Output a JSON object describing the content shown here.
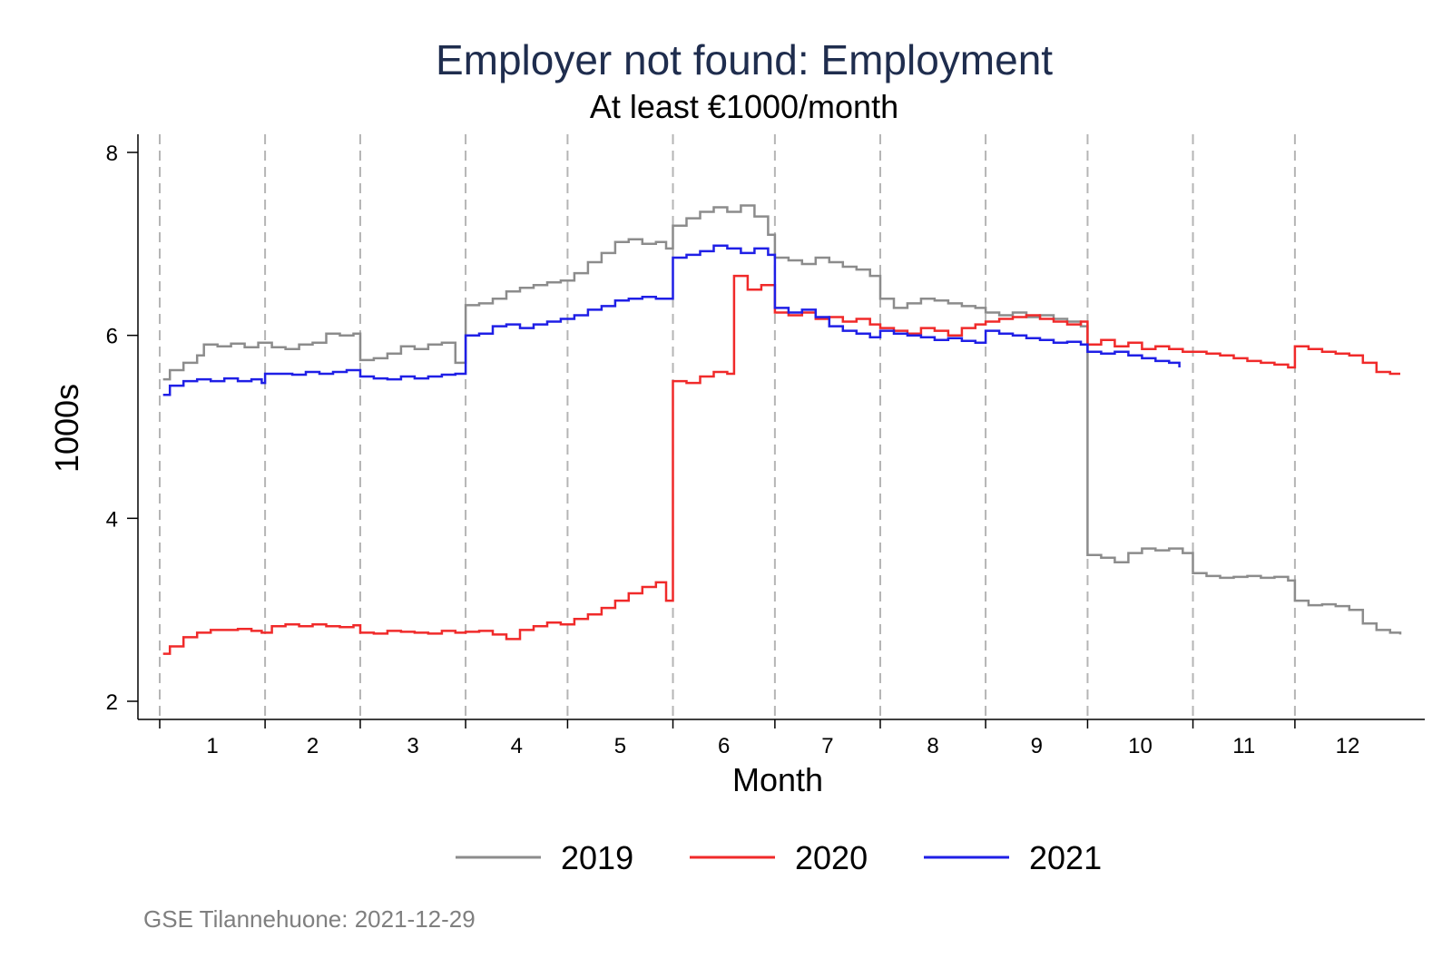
{
  "chart_data": {
    "type": "line",
    "title": "Employer not found: Employment",
    "subtitle": "At least €1000/month",
    "xlabel": "Month",
    "ylabel": "1000s",
    "xlim": [
      1,
      366
    ],
    "ylim": [
      2,
      8
    ],
    "yticks": [
      2,
      4,
      6,
      8
    ],
    "month_labels": [
      "1",
      "2",
      "3",
      "4",
      "5",
      "6",
      "7",
      "8",
      "9",
      "10",
      "11",
      "12"
    ],
    "month_starts": [
      1,
      32,
      60,
      91,
      121,
      152,
      182,
      213,
      244,
      274,
      305,
      335
    ],
    "x_unit": "day of year",
    "legend": {
      "position": "bottom",
      "entries": [
        "2019",
        "2020",
        "2021"
      ]
    },
    "grid": false,
    "series": [
      {
        "name": "2019",
        "color": "#8c8c8c",
        "points": [
          [
            2,
            5.52
          ],
          [
            4,
            5.62
          ],
          [
            8,
            5.7
          ],
          [
            12,
            5.78
          ],
          [
            14,
            5.9
          ],
          [
            18,
            5.88
          ],
          [
            22,
            5.91
          ],
          [
            26,
            5.87
          ],
          [
            30,
            5.92
          ],
          [
            34,
            5.87
          ],
          [
            38,
            5.85
          ],
          [
            42,
            5.9
          ],
          [
            46,
            5.92
          ],
          [
            50,
            6.02
          ],
          [
            54,
            6.0
          ],
          [
            58,
            6.02
          ],
          [
            60,
            5.73
          ],
          [
            64,
            5.75
          ],
          [
            68,
            5.8
          ],
          [
            72,
            5.88
          ],
          [
            76,
            5.85
          ],
          [
            80,
            5.9
          ],
          [
            84,
            5.92
          ],
          [
            88,
            5.7
          ],
          [
            91,
            6.33
          ],
          [
            95,
            6.35
          ],
          [
            99,
            6.4
          ],
          [
            103,
            6.48
          ],
          [
            107,
            6.52
          ],
          [
            111,
            6.55
          ],
          [
            115,
            6.58
          ],
          [
            119,
            6.6
          ],
          [
            123,
            6.68
          ],
          [
            127,
            6.8
          ],
          [
            131,
            6.9
          ],
          [
            135,
            7.02
          ],
          [
            139,
            7.05
          ],
          [
            143,
            7.0
          ],
          [
            147,
            7.02
          ],
          [
            150,
            6.95
          ],
          [
            152,
            7.2
          ],
          [
            156,
            7.28
          ],
          [
            160,
            7.35
          ],
          [
            164,
            7.4
          ],
          [
            168,
            7.35
          ],
          [
            172,
            7.42
          ],
          [
            176,
            7.3
          ],
          [
            180,
            7.1
          ],
          [
            182,
            6.85
          ],
          [
            186,
            6.82
          ],
          [
            190,
            6.78
          ],
          [
            194,
            6.85
          ],
          [
            198,
            6.8
          ],
          [
            202,
            6.75
          ],
          [
            206,
            6.72
          ],
          [
            210,
            6.65
          ],
          [
            213,
            6.4
          ],
          [
            217,
            6.3
          ],
          [
            221,
            6.35
          ],
          [
            225,
            6.4
          ],
          [
            229,
            6.38
          ],
          [
            233,
            6.35
          ],
          [
            237,
            6.32
          ],
          [
            241,
            6.3
          ],
          [
            244,
            6.25
          ],
          [
            248,
            6.22
          ],
          [
            252,
            6.25
          ],
          [
            256,
            6.2
          ],
          [
            260,
            6.22
          ],
          [
            264,
            6.18
          ],
          [
            268,
            6.15
          ],
          [
            272,
            6.1
          ],
          [
            274,
            3.6
          ],
          [
            278,
            3.57
          ],
          [
            282,
            3.52
          ],
          [
            286,
            3.62
          ],
          [
            290,
            3.67
          ],
          [
            294,
            3.65
          ],
          [
            298,
            3.67
          ],
          [
            302,
            3.62
          ],
          [
            305,
            3.4
          ],
          [
            309,
            3.37
          ],
          [
            313,
            3.35
          ],
          [
            317,
            3.36
          ],
          [
            321,
            3.37
          ],
          [
            325,
            3.35
          ],
          [
            329,
            3.36
          ],
          [
            333,
            3.32
          ],
          [
            335,
            3.1
          ],
          [
            339,
            3.05
          ],
          [
            343,
            3.06
          ],
          [
            347,
            3.04
          ],
          [
            351,
            3.0
          ],
          [
            355,
            2.85
          ],
          [
            359,
            2.78
          ],
          [
            363,
            2.75
          ],
          [
            366,
            2.73
          ]
        ]
      },
      {
        "name": "2020",
        "color": "#f02a2a",
        "points": [
          [
            2,
            2.52
          ],
          [
            4,
            2.6
          ],
          [
            8,
            2.7
          ],
          [
            12,
            2.75
          ],
          [
            16,
            2.78
          ],
          [
            20,
            2.78
          ],
          [
            24,
            2.79
          ],
          [
            28,
            2.77
          ],
          [
            31,
            2.75
          ],
          [
            34,
            2.82
          ],
          [
            38,
            2.84
          ],
          [
            42,
            2.82
          ],
          [
            46,
            2.84
          ],
          [
            50,
            2.82
          ],
          [
            54,
            2.81
          ],
          [
            58,
            2.83
          ],
          [
            60,
            2.75
          ],
          [
            64,
            2.74
          ],
          [
            68,
            2.77
          ],
          [
            72,
            2.76
          ],
          [
            76,
            2.75
          ],
          [
            80,
            2.74
          ],
          [
            84,
            2.77
          ],
          [
            88,
            2.75
          ],
          [
            91,
            2.76
          ],
          [
            95,
            2.77
          ],
          [
            99,
            2.73
          ],
          [
            103,
            2.68
          ],
          [
            107,
            2.78
          ],
          [
            111,
            2.82
          ],
          [
            115,
            2.86
          ],
          [
            119,
            2.84
          ],
          [
            123,
            2.9
          ],
          [
            127,
            2.95
          ],
          [
            131,
            3.02
          ],
          [
            135,
            3.1
          ],
          [
            139,
            3.18
          ],
          [
            143,
            3.25
          ],
          [
            147,
            3.3
          ],
          [
            150,
            3.1
          ],
          [
            152,
            5.5
          ],
          [
            156,
            5.48
          ],
          [
            160,
            5.55
          ],
          [
            164,
            5.6
          ],
          [
            168,
            5.58
          ],
          [
            170,
            6.65
          ],
          [
            174,
            6.5
          ],
          [
            178,
            6.55
          ],
          [
            182,
            6.25
          ],
          [
            186,
            6.22
          ],
          [
            190,
            6.25
          ],
          [
            194,
            6.18
          ],
          [
            198,
            6.2
          ],
          [
            202,
            6.15
          ],
          [
            206,
            6.18
          ],
          [
            210,
            6.12
          ],
          [
            213,
            6.08
          ],
          [
            217,
            6.05
          ],
          [
            221,
            6.02
          ],
          [
            225,
            6.08
          ],
          [
            229,
            6.05
          ],
          [
            233,
            6.0
          ],
          [
            237,
            6.08
          ],
          [
            241,
            6.12
          ],
          [
            244,
            6.15
          ],
          [
            248,
            6.18
          ],
          [
            252,
            6.2
          ],
          [
            256,
            6.22
          ],
          [
            260,
            6.18
          ],
          [
            264,
            6.15
          ],
          [
            268,
            6.12
          ],
          [
            272,
            6.15
          ],
          [
            274,
            5.9
          ],
          [
            278,
            5.95
          ],
          [
            282,
            5.88
          ],
          [
            286,
            5.92
          ],
          [
            290,
            5.85
          ],
          [
            294,
            5.88
          ],
          [
            298,
            5.85
          ],
          [
            302,
            5.82
          ],
          [
            305,
            5.82
          ],
          [
            309,
            5.8
          ],
          [
            313,
            5.78
          ],
          [
            317,
            5.75
          ],
          [
            321,
            5.72
          ],
          [
            325,
            5.7
          ],
          [
            329,
            5.68
          ],
          [
            333,
            5.65
          ],
          [
            335,
            5.88
          ],
          [
            339,
            5.85
          ],
          [
            343,
            5.82
          ],
          [
            347,
            5.8
          ],
          [
            351,
            5.78
          ],
          [
            355,
            5.7
          ],
          [
            359,
            5.6
          ],
          [
            363,
            5.58
          ],
          [
            366,
            5.58
          ]
        ]
      },
      {
        "name": "2021",
        "color": "#1f1fe6",
        "points": [
          [
            2,
            5.35
          ],
          [
            4,
            5.45
          ],
          [
            8,
            5.5
          ],
          [
            12,
            5.52
          ],
          [
            16,
            5.5
          ],
          [
            20,
            5.53
          ],
          [
            24,
            5.5
          ],
          [
            28,
            5.52
          ],
          [
            31,
            5.48
          ],
          [
            32,
            5.58
          ],
          [
            36,
            5.58
          ],
          [
            40,
            5.57
          ],
          [
            44,
            5.6
          ],
          [
            48,
            5.58
          ],
          [
            52,
            5.6
          ],
          [
            56,
            5.62
          ],
          [
            60,
            5.55
          ],
          [
            64,
            5.53
          ],
          [
            68,
            5.52
          ],
          [
            72,
            5.55
          ],
          [
            76,
            5.53
          ],
          [
            80,
            5.55
          ],
          [
            84,
            5.57
          ],
          [
            88,
            5.58
          ],
          [
            91,
            6.0
          ],
          [
            95,
            6.02
          ],
          [
            99,
            6.1
          ],
          [
            103,
            6.12
          ],
          [
            107,
            6.08
          ],
          [
            111,
            6.12
          ],
          [
            115,
            6.15
          ],
          [
            119,
            6.18
          ],
          [
            123,
            6.22
          ],
          [
            127,
            6.28
          ],
          [
            131,
            6.32
          ],
          [
            135,
            6.38
          ],
          [
            139,
            6.4
          ],
          [
            143,
            6.42
          ],
          [
            147,
            6.4
          ],
          [
            150,
            6.4
          ],
          [
            152,
            6.85
          ],
          [
            156,
            6.88
          ],
          [
            160,
            6.92
          ],
          [
            164,
            6.98
          ],
          [
            168,
            6.95
          ],
          [
            172,
            6.9
          ],
          [
            176,
            6.95
          ],
          [
            180,
            6.88
          ],
          [
            182,
            6.3
          ],
          [
            186,
            6.25
          ],
          [
            190,
            6.28
          ],
          [
            194,
            6.2
          ],
          [
            198,
            6.1
          ],
          [
            202,
            6.05
          ],
          [
            206,
            6.02
          ],
          [
            210,
            5.98
          ],
          [
            213,
            6.05
          ],
          [
            217,
            6.02
          ],
          [
            221,
            6.0
          ],
          [
            225,
            5.98
          ],
          [
            229,
            5.95
          ],
          [
            233,
            5.97
          ],
          [
            237,
            5.94
          ],
          [
            241,
            5.92
          ],
          [
            244,
            6.05
          ],
          [
            248,
            6.02
          ],
          [
            252,
            6.0
          ],
          [
            256,
            5.97
          ],
          [
            260,
            5.95
          ],
          [
            264,
            5.92
          ],
          [
            268,
            5.93
          ],
          [
            272,
            5.9
          ],
          [
            274,
            5.82
          ],
          [
            278,
            5.8
          ],
          [
            282,
            5.82
          ],
          [
            286,
            5.78
          ],
          [
            290,
            5.75
          ],
          [
            294,
            5.72
          ],
          [
            298,
            5.7
          ],
          [
            301,
            5.65
          ]
        ]
      }
    ]
  },
  "footnote": "GSE Tilannehuone: 2021-12-29"
}
